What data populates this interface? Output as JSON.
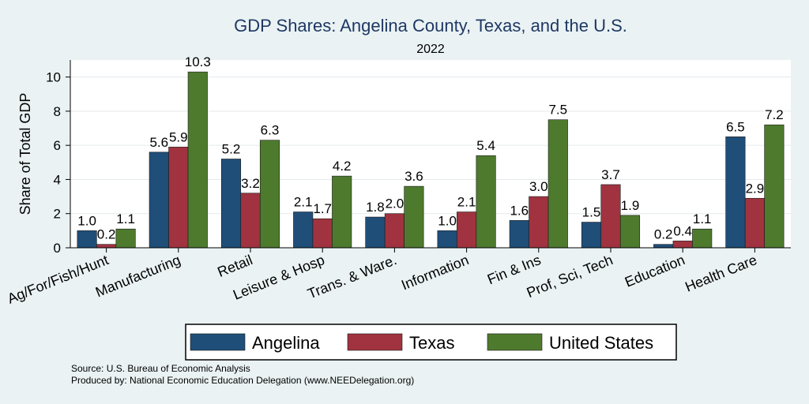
{
  "chart_data": {
    "type": "bar",
    "title": "GDP Shares: Angelina County, Texas, and the U.S.",
    "subtitle": "2022",
    "ylabel": "Share of Total GDP",
    "xlabel": "",
    "ylim": [
      0,
      11
    ],
    "yticks": [
      0,
      2,
      4,
      6,
      8,
      10
    ],
    "categories": [
      "Ag/For/Fish/Hunt",
      "Manufacturing",
      "Retail",
      "Leisure & Hosp",
      "Trans. & Ware.",
      "Information",
      "Fin & Ins",
      "Prof, Sci, Tech",
      "Education",
      "Health Care"
    ],
    "series": [
      {
        "name": "Angelina",
        "color": "#1f4e79",
        "values": [
          1.0,
          5.6,
          5.2,
          2.1,
          1.8,
          1.0,
          1.6,
          1.5,
          0.2,
          6.5
        ]
      },
      {
        "name": "Texas",
        "color": "#a0333f",
        "values": [
          0.2,
          5.9,
          3.2,
          1.7,
          2.0,
          2.1,
          3.0,
          3.7,
          0.4,
          2.9
        ]
      },
      {
        "name": "United States",
        "color": "#4e7a2e",
        "values": [
          1.1,
          10.3,
          6.3,
          4.2,
          3.6,
          5.4,
          7.5,
          1.9,
          1.1,
          7.2
        ]
      }
    ],
    "grid": true,
    "legend": "bottom"
  },
  "footer": {
    "source": "Source: U.S. Bureau of Economic Analysis",
    "produced_by": "Produced by: National Economic Education Delegation (www.NEEDelegation.org)"
  }
}
